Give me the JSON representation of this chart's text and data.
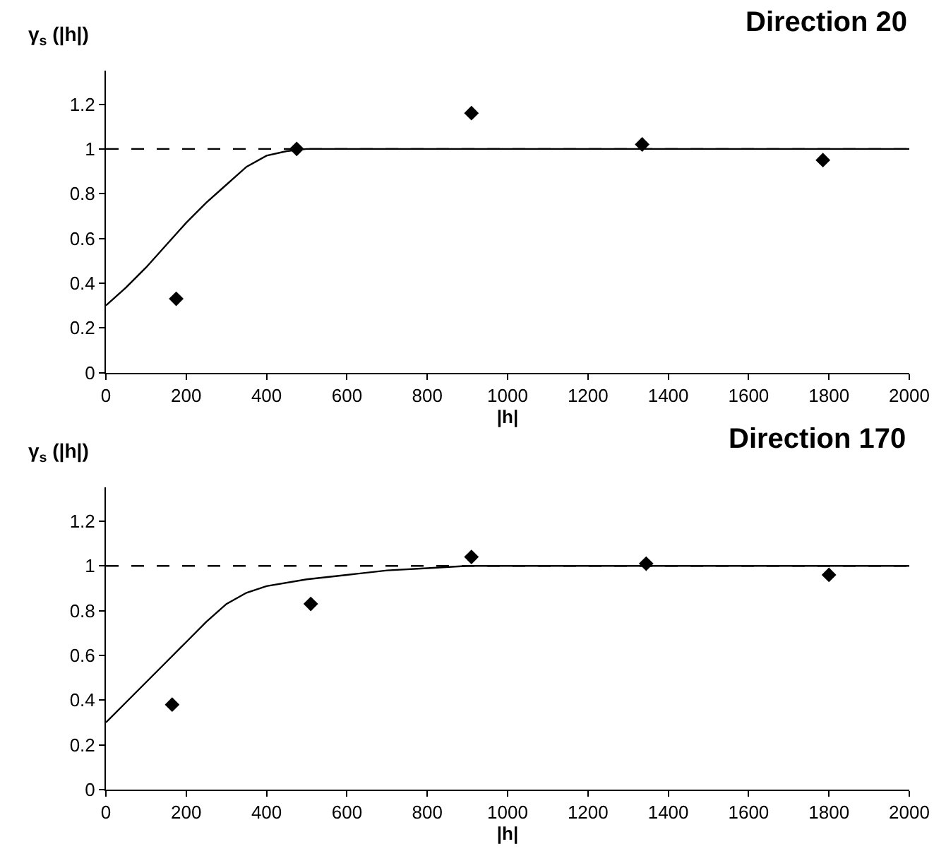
{
  "chart_data": [
    {
      "type": "scatter",
      "title": "Direction 20",
      "xlabel": "|h|",
      "ylabel": "γ$_{s}$ (|h|)",
      "xlim": [
        0,
        2000
      ],
      "xticks": [
        0,
        200,
        400,
        600,
        800,
        1000,
        1200,
        1400,
        1600,
        1800,
        2000
      ],
      "ylim": [
        0,
        1.35
      ],
      "yticks": [
        0,
        0.2,
        0.4,
        0.6,
        0.8,
        1,
        1.2
      ],
      "series": [
        {
          "marker": "diamond",
          "color": "#000000",
          "x": [
            175,
            475,
            910,
            1335,
            1785
          ],
          "values": [
            0.33,
            1.0,
            1.16,
            1.02,
            0.95
          ]
        },
        {
          "type": "line",
          "line_style": "solid",
          "color": "#000000",
          "x": [
            0,
            50,
            100,
            150,
            200,
            250,
            300,
            350,
            400,
            450,
            500,
            2000
          ],
          "values": [
            0.3,
            0.38,
            0.47,
            0.57,
            0.67,
            0.76,
            0.84,
            0.92,
            0.97,
            0.99,
            1.0,
            1.0
          ]
        }
      ],
      "ref_lines": [
        {
          "axis": "y",
          "value": 1,
          "color": "#000000",
          "line_style": "dashed"
        }
      ]
    },
    {
      "type": "scatter",
      "title": "Direction 170",
      "xlabel": "|h|",
      "ylabel": "γ$_{s}$ (|h|)",
      "xlim": [
        0,
        2000
      ],
      "xticks": [
        0,
        200,
        400,
        600,
        800,
        1000,
        1200,
        1400,
        1600,
        1800,
        2000
      ],
      "ylim": [
        0,
        1.35
      ],
      "yticks": [
        0,
        0.2,
        0.4,
        0.6,
        0.8,
        1,
        1.2
      ],
      "series": [
        {
          "marker": "diamond",
          "color": "#000000",
          "x": [
            165,
            510,
            910,
            1345,
            1800
          ],
          "values": [
            0.38,
            0.83,
            1.04,
            1.01,
            0.96
          ]
        },
        {
          "type": "line",
          "line_style": "solid",
          "color": "#000000",
          "x": [
            0,
            50,
            100,
            150,
            200,
            250,
            300,
            350,
            400,
            500,
            600,
            700,
            800,
            900,
            2000
          ],
          "values": [
            0.3,
            0.39,
            0.48,
            0.57,
            0.66,
            0.75,
            0.83,
            0.88,
            0.91,
            0.94,
            0.96,
            0.98,
            0.99,
            1.0,
            1.0
          ]
        }
      ],
      "ref_lines": [
        {
          "axis": "y",
          "value": 1,
          "color": "#000000",
          "line_style": "dashed"
        }
      ]
    }
  ]
}
